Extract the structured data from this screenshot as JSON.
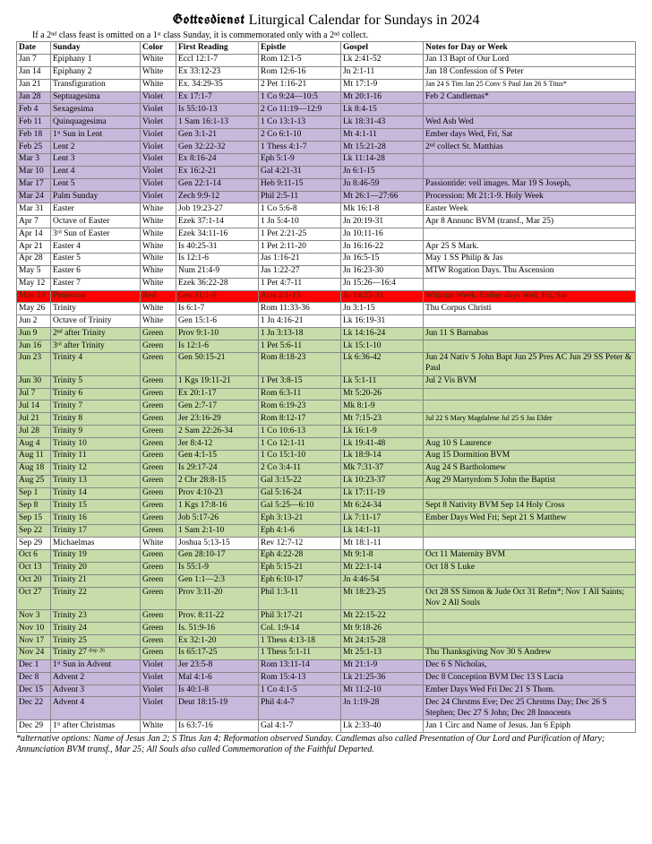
{
  "title_prefix": "Gottesdienst",
  "title_rest": " Liturgical Calendar for Sundays in 2024",
  "subnote": "If a 2ⁿᵈ class feast is omitted on a 1ˢᵗ class Sunday, it is commemorated only with a 2ⁿᵈ collect.",
  "headers": [
    "Date",
    "Sunday",
    "Color",
    "First Reading",
    "Epistle",
    "Gospel",
    "Notes for Day or Week"
  ],
  "footnote": "*alternative options: Name of Jesus Jan 2; S Titus Jan 4; Reformation observed Sunday. Candlemas also called Presentation of Our Lord and Purification of Mary; Annunciation BVM transf., Mar 25; All Souls also called Commemoration of the Faithful Departed.",
  "rows": [
    {
      "c": "white",
      "d": "Jan 7",
      "s": "Epiphany 1",
      "col": "White",
      "f": "Eccl 12:1-7",
      "e": "Rom 12:1-5",
      "g": "Lk 2:41-52",
      "n": "Jan 13 Bapt of Our Lord"
    },
    {
      "c": "white",
      "d": "Jan 14",
      "s": "Epiphany 2",
      "col": "White",
      "f": "Ex 33:12-23",
      "e": "Rom 12:6-16",
      "g": "Jn 2:1-11",
      "n": "Jan 18 Confession of S Peter"
    },
    {
      "c": "white",
      "d": "Jan 21",
      "s": "Transfiguration",
      "col": "White",
      "f": "Ex. 34:29-35",
      "e": "2 Pet 1:16-21",
      "g": "Mt 17:1-9",
      "n": "Jan 24 S Tim Jan 25 Conv S Paul Jan 26 S Titus*",
      "ns": true
    },
    {
      "c": "violet",
      "d": "Jan 28",
      "s": "Septuagesima",
      "col": "Violet",
      "f": "Ex 17:1-7",
      "e": "1 Co 9:24—10:5",
      "g": "Mt 20:1-16",
      "n": "Feb 2 Candlemas*"
    },
    {
      "c": "violet",
      "d": "Feb 4",
      "s": "Sexagesima",
      "col": "Violet",
      "f": "Is 55:10-13",
      "e": "2 Co 11:19—12:9",
      "g": "Lk 8:4-15",
      "n": ""
    },
    {
      "c": "violet",
      "d": "Feb 11",
      "s": "Quinquagesima",
      "col": "Violet",
      "f": "1 Sam 16:1-13",
      "e": "1 Co 13:1-13",
      "g": "Lk 18:31-43",
      "n": "Wed Ash Wed"
    },
    {
      "c": "violet",
      "d": "Feb 18",
      "s": "1ˢᵗ Sun in Lent",
      "col": "Violet",
      "f": "Gen 3:1-21",
      "e": "2 Co 6:1-10",
      "g": "Mt 4:1-11",
      "n": "Ember days Wed, Fri, Sat"
    },
    {
      "c": "violet",
      "d": "Feb 25",
      "s": "Lent 2",
      "col": "Violet",
      "f": "Gen 32:22-32",
      "e": "1 Thess 4:1-7",
      "g": "Mt 15:21-28",
      "n": "2ⁿᵈ collect St. Matthias"
    },
    {
      "c": "violet",
      "d": "Mar 3",
      "s": "Lent 3",
      "col": "Violet",
      "f": "Ex 8:16-24",
      "e": "Eph 5:1-9",
      "g": "Lk 11:14-28",
      "n": ""
    },
    {
      "c": "violet",
      "d": "Mar 10",
      "s": "Lent 4",
      "col": "Violet",
      "f": "Ex 16:2-21",
      "e": "Gal 4:21-31",
      "g": "Jn 6:1-15",
      "n": ""
    },
    {
      "c": "violet",
      "d": "Mar 17",
      "s": "Lent 5",
      "col": "Violet",
      "f": "Gen 22:1-14",
      "e": "Heb 9:11-15",
      "g": "Jn 8:46-59",
      "n": "Passiontide: veil images. Mar 19 S Joseph,"
    },
    {
      "c": "violet",
      "d": "Mar 24",
      "s": "Palm Sunday",
      "col": "Violet",
      "f": "Zech 9:9-12",
      "e": "Phil 2:5-11",
      "g": "Mt 26:1—27:66",
      "n": "Procession: Mt 21:1-9. Holy Week"
    },
    {
      "c": "white",
      "d": "Mar 31",
      "s": "Easter",
      "col": "White",
      "f": "Job 19:23-27",
      "e": "1 Co 5:6-8",
      "g": "Mk 16:1-8",
      "n": "Easter Week"
    },
    {
      "c": "white",
      "d": "Apr 7",
      "s": "Octave of Easter",
      "col": "White",
      "f": "Ezek 37:1-14",
      "e": "1 Jn 5:4-10",
      "g": "Jn 20:19-31",
      "n": "Apr 8 Annunc BVM (transf., Mar 25)"
    },
    {
      "c": "white",
      "d": "Apr 14",
      "s": "3ʳᵈ Sun of Easter",
      "col": "White",
      "f": "Ezek 34:11-16",
      "e": "1 Pet 2:21-25",
      "g": "Jn 10:11-16",
      "n": ""
    },
    {
      "c": "white",
      "d": "Apr 21",
      "s": "Easter 4",
      "col": "White",
      "f": "Is 40:25-31",
      "e": "1 Pet 2:11-20",
      "g": "Jn 16:16-22",
      "n": "Apr 25 S Mark."
    },
    {
      "c": "white",
      "d": "Apr 28",
      "s": "Easter 5",
      "col": "White",
      "f": "Is 12:1-6",
      "e": "Jas 1:16-21",
      "g": "Jn 16:5-15",
      "n": "May 1 SS Philip & Jas"
    },
    {
      "c": "white",
      "d": "May 5",
      "s": "Easter 6",
      "col": "White",
      "f": "Num 21:4-9",
      "e": "Jas 1:22-27",
      "g": "Jn 16:23-30",
      "n": "MTW Rogation Days. Thu Ascension"
    },
    {
      "c": "white",
      "d": "May 12",
      "s": "Easter 7",
      "col": "White",
      "f": "Ezek 36:22-28",
      "e": "1 Pet 4:7-11",
      "g": "Jn 15:26—16:4",
      "n": ""
    },
    {
      "c": "red",
      "d": "May 19",
      "s": "Pentecost",
      "col": "Red",
      "f": "Gen 11:1-9",
      "e": "Acts 2:1-13",
      "g": "Jn 14:23-31",
      "n": "Whitsun Week. Ember days Wed, Fri, Sat"
    },
    {
      "c": "white",
      "d": "May 26",
      "s": "Trinity",
      "col": "White",
      "f": "Is 6:1-7",
      "e": "Rom 11:33-36",
      "g": "Jn 3:1-15",
      "n": "Thu Corpus Christi"
    },
    {
      "c": "white",
      "d": "Jun 2",
      "s": "Octave of Trinity",
      "col": "White",
      "f": "Gen 15:1-6",
      "e": "1 Jn 4:16-21",
      "g": "Lk 16:19-31",
      "n": ""
    },
    {
      "c": "green",
      "d": "Jun 9",
      "s": "2ⁿᵈ after Trinity",
      "col": "Green",
      "f": "Prov 9:1-10",
      "e": "1 Jn 3:13-18",
      "g": "Lk 14:16-24",
      "n": "Jun 11 S Barnabas"
    },
    {
      "c": "green",
      "d": "Jun 16",
      "s": "3ʳᵈ after Trinity",
      "col": "Green",
      "f": "Is 12:1-6",
      "e": "1 Pet 5:6-11",
      "g": "Lk 15:1-10",
      "n": ""
    },
    {
      "c": "green",
      "d": "Jun 23",
      "s": "Trinity 4",
      "col": "Green",
      "f": "Gen 50:15-21",
      "e": "Rom 8:18-23",
      "g": "Lk 6:36-42",
      "n": "Jun 24 Nativ S John Bapt Jun 25 Pres AC Jun 29 SS Peter & Paul"
    },
    {
      "c": "green",
      "d": "Jun 30",
      "s": "Trinity 5",
      "col": "Green",
      "f": "1 Kgs 19:11-21",
      "e": "1 Pet 3:8-15",
      "g": "Lk 5:1-11",
      "n": "Jul 2 Vis BVM"
    },
    {
      "c": "green",
      "d": "Jul 7",
      "s": "Trinity 6",
      "col": "Green",
      "f": "Ex 20:1-17",
      "e": "Rom 6:3-11",
      "g": "Mt 5:20-26",
      "n": ""
    },
    {
      "c": "green",
      "d": "Jul 14",
      "s": "Trinity 7",
      "col": "Green",
      "f": "Gen 2:7-17",
      "e": "Rom 6:19-23",
      "g": "Mk 8:1-9",
      "n": ""
    },
    {
      "c": "green",
      "d": "Jul 21",
      "s": "Trinity 8",
      "col": "Green",
      "f": "Jer 23:16-29",
      "e": "Rom 8:12-17",
      "g": "Mt 7:15-23",
      "n": "Jul 22 S Mary Magdalene Jul 25 S Jas Elder",
      "ns": true
    },
    {
      "c": "green",
      "d": "Jul 28",
      "s": "Trinity 9",
      "col": "Green",
      "f": "2 Sam 22:26-34",
      "e": "1 Co 10:6-13",
      "g": "Lk 16:1-9",
      "n": ""
    },
    {
      "c": "green",
      "d": "Aug 4",
      "s": "Trinity 10",
      "col": "Green",
      "f": "Jer 8:4-12",
      "e": "1 Co 12:1-11",
      "g": "Lk 19:41-48",
      "n": "Aug 10 S Laurence"
    },
    {
      "c": "green",
      "d": "Aug 11",
      "s": "Trinity 11",
      "col": "Green",
      "f": "Gen 4:1-15",
      "e": "1 Co 15:1-10",
      "g": "Lk 18:9-14",
      "n": "Aug 15 Dormition BVM"
    },
    {
      "c": "green",
      "d": "Aug 18",
      "s": "Trinity 12",
      "col": "Green",
      "f": "Is 29:17-24",
      "e": "2 Co 3:4-11",
      "g": "Mk 7:31-37",
      "n": "Aug 24 S Bartholomew"
    },
    {
      "c": "green",
      "d": "Aug 25",
      "s": "Trinity 13",
      "col": "Green",
      "f": "2 Chr 28:8-15",
      "e": "Gal 3:15-22",
      "g": "Lk 10:23-37",
      "n": "Aug 29 Martyrdom S John the Baptist"
    },
    {
      "c": "green",
      "d": "Sep 1",
      "s": "Trinity 14",
      "col": "Green",
      "f": "Prov 4:10-23",
      "e": "Gal 5:16-24",
      "g": "Lk 17:11-19",
      "n": ""
    },
    {
      "c": "green",
      "d": "Sep 8",
      "s": "Trinity 15",
      "col": "Green",
      "f": "1 Kgs 17:8-16",
      "e": "Gal 5:25—6:10",
      "g": "Mt 6:24-34",
      "n": "Sept 8 Nativity BVM  Sep 14 Holy Cross"
    },
    {
      "c": "green",
      "d": "Sep 15",
      "s": "Trinity 16",
      "col": "Green",
      "f": "Job 5:17-26",
      "e": "Eph 3:13-21",
      "g": "Lk 7:11-17",
      "n": "Ember Days Wed Fri; Sept 21 S Matthew"
    },
    {
      "c": "green",
      "d": "Sep 22",
      "s": "Trinity 17",
      "col": "Green",
      "f": "1 Sam 2:1-10",
      "e": "Eph 4:1-6",
      "g": "Lk 14:1-11",
      "n": ""
    },
    {
      "c": "white",
      "d": "Sep 29",
      "s": "Michaelmas",
      "col": "White",
      "f": "Joshua 5:13-15",
      "e": "Rev 12:7-12",
      "g": "Mt 18:1-11",
      "n": ""
    },
    {
      "c": "green",
      "d": "Oct 6",
      "s": "Trinity 19",
      "col": "Green",
      "f": "Gen 28:10-17",
      "e": "Eph 4:22-28",
      "g": "Mt 9:1-8",
      "n": "Oct 11 Maternity BVM"
    },
    {
      "c": "green",
      "d": "Oct 13",
      "s": "Trinity 20",
      "col": "Green",
      "f": "Is 55:1-9",
      "e": "Eph 5:15-21",
      "g": "Mt 22:1-14",
      "n": "Oct 18 S Luke"
    },
    {
      "c": "green",
      "d": "Oct 20",
      "s": "Trinity 21",
      "col": "Green",
      "f": "Gen 1:1—2:3",
      "e": "Eph 6:10-17",
      "g": "Jn 4:46-54",
      "n": ""
    },
    {
      "c": "green",
      "d": "Oct 27",
      "s": "Trinity 22",
      "col": "Green",
      "f": "Prov 3:11-20",
      "e": "Phil 1:3-11",
      "g": "Mt 18:23-25",
      "n": "Oct 28 SS Simon & Jude Oct 31 Refm*; Nov 1 All Saints; Nov 2 All Souls"
    },
    {
      "c": "green",
      "d": "Nov 3",
      "s": "Trinity 23",
      "col": "Green",
      "f": "Prov. 8:11-22",
      "e": "Phil 3:17-21",
      "g": "Mt 22:15-22",
      "n": ""
    },
    {
      "c": "green",
      "d": "Nov 10",
      "s": "Trinity 24",
      "col": "Green",
      "f": "Is. 51:9-16",
      "e": "Col. 1:9-14",
      "g": "Mt 9:18-26",
      "n": ""
    },
    {
      "c": "green",
      "d": "Nov 17",
      "s": "Trinity 25",
      "col": "Green",
      "f": "Ex 32:1-20",
      "e": "1 Thess 4:13-18",
      "g": "Mt 24:15-28",
      "n": ""
    },
    {
      "c": "green",
      "d": "Nov 24",
      "s": "Trinity 27 ᵈᶦˢᵖ ²⁶",
      "col": "Green",
      "f": "Is 65:17-25",
      "e": "1 Thess 5:1-11",
      "g": "Mt 25:1-13",
      "n": "Thu Thanksgiving Nov 30 S Andrew"
    },
    {
      "c": "violet",
      "d": "Dec 1",
      "s": "1ˢᵗ Sun in Advent",
      "col": "Violet",
      "f": "Jer 23:5-8",
      "e": "Rom 13:11-14",
      "g": "Mt 21:1-9",
      "n": "Dec 6 S Nicholas,"
    },
    {
      "c": "violet",
      "d": "Dec 8",
      "s": "Advent 2",
      "col": "Violet",
      "f": "Mal 4:1-6",
      "e": "Rom 15:4-13",
      "g": "Lk 21:25-36",
      "n": "Dec 8 Conception BVM Dec 13 S Lucia"
    },
    {
      "c": "violet",
      "d": "Dec 15",
      "s": "Advent 3",
      "col": "Violet",
      "f": "Is 40:1-8",
      "e": "1 Co 4:1-5",
      "g": "Mt 11:2-10",
      "n": "Ember Days Wed Fri Dec 21 S Thom."
    },
    {
      "c": "violet",
      "d": "Dec 22",
      "s": "Advent 4",
      "col": "Violet",
      "f": "Deut 18:15-19",
      "e": "Phil 4:4-7",
      "g": "Jn 1:19-28",
      "n": "Dec 24 Chrstms Eve; Dec 25 Chrstms Day; Dec 26 S Stephen; Dec 27 S John; Dec 28 Innocents"
    },
    {
      "c": "white",
      "d": "Dec 29",
      "s": "1ˢᵗ after Christmas",
      "col": "White",
      "f": "Is 63:7-16",
      "e": "Gal 4:1-7",
      "g": "Lk 2:33-40",
      "n": "Jan 1 Circ and Name of Jesus. Jan 6 Epiph"
    }
  ]
}
